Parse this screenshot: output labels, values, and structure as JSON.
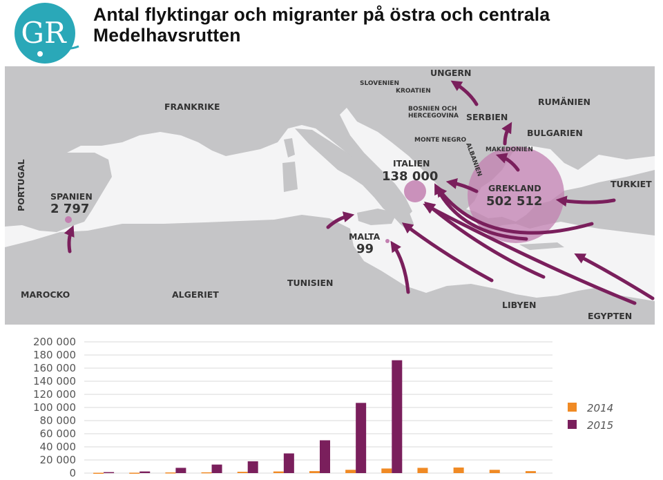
{
  "header": {
    "title_line1": "Antal flyktingar och migranter på östra och centrala",
    "title_line2": "Medelhavsrutten",
    "logo_text": "GR"
  },
  "colors": {
    "land": "#c5c5c7",
    "sea": "#f4f4f5",
    "arrow": "#7a1f5c",
    "circle": "#c27fb0",
    "bar_2014": "#f08a24",
    "bar_2015": "#7a1f5c",
    "logo": "#2aa8b8"
  },
  "map": {
    "countries": {
      "ungern": "UNGERN",
      "slovenien": "SLOVENIEN",
      "kroatien": "KROATIEN",
      "frankrike": "FRANKRIKE",
      "rumanien": "RUMÄNIEN",
      "bosnien1": "BOSNIEN OCH",
      "bosnien2": "HERCEGOVINA",
      "serbien": "SERBIEN",
      "bulgarien": "BULGARIEN",
      "montenegro": "MONTE NEGRO",
      "albanien": "ALBANIEN",
      "makedonien": "MAKEDONIEN",
      "portugal": "PORTUGAL",
      "turkiet": "TURKIET",
      "marocko": "MAROCKO",
      "algeriet": "ALGERIET",
      "tunisien": "TUNISIEN",
      "libyen": "LIBYEN",
      "egypten": "EGYPTEN"
    },
    "destinations": [
      {
        "name": "ITALIEN",
        "count": "138 000"
      },
      {
        "name": "GREKLAND",
        "count": "502 512"
      },
      {
        "name": "SPANIEN",
        "count": "2 797"
      },
      {
        "name": "MALTA",
        "count": "99"
      }
    ]
  },
  "chart_data": {
    "type": "bar",
    "y_ticks": [
      "200 000",
      "180 000",
      "160 000",
      "140 000",
      "120 000",
      "100 000",
      "80 000",
      "60 000",
      "40 000",
      "20 000",
      "0"
    ],
    "ylim": [
      0,
      200000
    ],
    "series": [
      {
        "name": "2014",
        "values": [
          500,
          600,
          1000,
          1200,
          2000,
          2500,
          3000,
          5000,
          7000,
          8000,
          8500,
          5000,
          3000
        ]
      },
      {
        "name": "2015",
        "values": [
          1500,
          2500,
          8000,
          13000,
          18000,
          30000,
          50000,
          107000,
          172000,
          0,
          0,
          0,
          0
        ]
      }
    ],
    "legend_position": "right"
  }
}
